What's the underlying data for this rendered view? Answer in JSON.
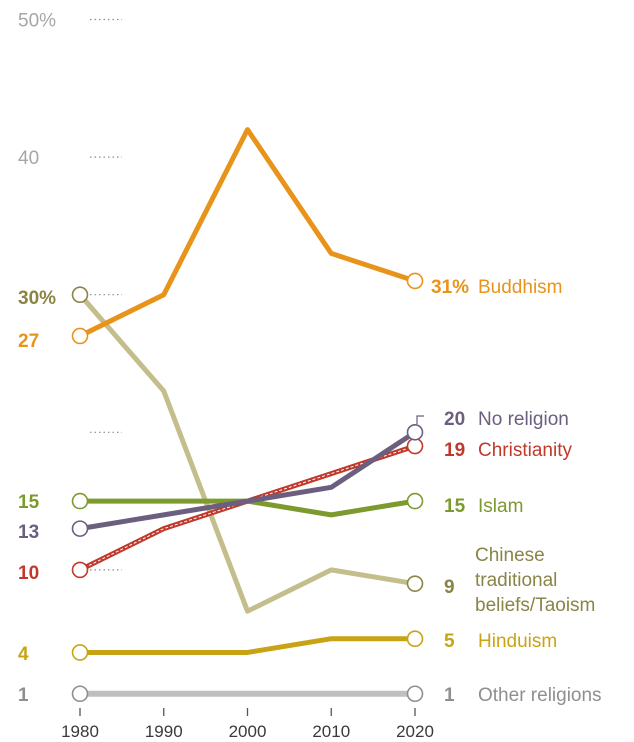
{
  "chart_data": {
    "type": "line",
    "x": [
      1980,
      1990,
      2000,
      2010,
      2020
    ],
    "ylim": [
      0,
      50
    ],
    "y_ticks": [
      {
        "value": 50,
        "label": "50%"
      },
      {
        "value": 40,
        "label": "40"
      },
      {
        "value": 20,
        "label": ""
      }
    ],
    "grid": "dotted stubs at left",
    "series": [
      {
        "name": "Other religions",
        "color": "#bfbfbf",
        "values": [
          1,
          1,
          1,
          1,
          1
        ],
        "start_label": "1",
        "end_label": "1"
      },
      {
        "name": "Hinduism",
        "color": "#c8a415",
        "values": [
          4,
          4,
          4,
          5,
          5
        ],
        "start_label": "4",
        "end_label": "5"
      },
      {
        "name": "Chinese traditional beliefs/Taoism",
        "color": "#c4bd8c",
        "label_lines": [
          "Chinese",
          "traditional",
          "beliefs/Taoism"
        ],
        "values": [
          30,
          23,
          7,
          10,
          9
        ],
        "start_label": "30%",
        "end_label": "9"
      },
      {
        "name": "Islam",
        "color": "#7c9a2e",
        "values": [
          15,
          15,
          15,
          14,
          15
        ],
        "start_label": "15",
        "end_label": "15"
      },
      {
        "name": "Christianity",
        "color": "#c0392b",
        "values": [
          10,
          13,
          15,
          17,
          19
        ],
        "start_label": "10",
        "end_label": "19"
      },
      {
        "name": "No religion",
        "color": "#6b5e7e",
        "values": [
          13,
          14,
          15,
          16,
          20
        ],
        "start_label": "13",
        "end_label": "20"
      },
      {
        "name": "Buddhism",
        "color": "#e8941a",
        "values": [
          27,
          30,
          42,
          33,
          31
        ],
        "start_label": "27",
        "end_label": "31%"
      }
    ]
  },
  "colors": {
    "tick": "#a6a6a6",
    "start_label_30": "#8a8446",
    "end_label_9": "#8a8446"
  }
}
